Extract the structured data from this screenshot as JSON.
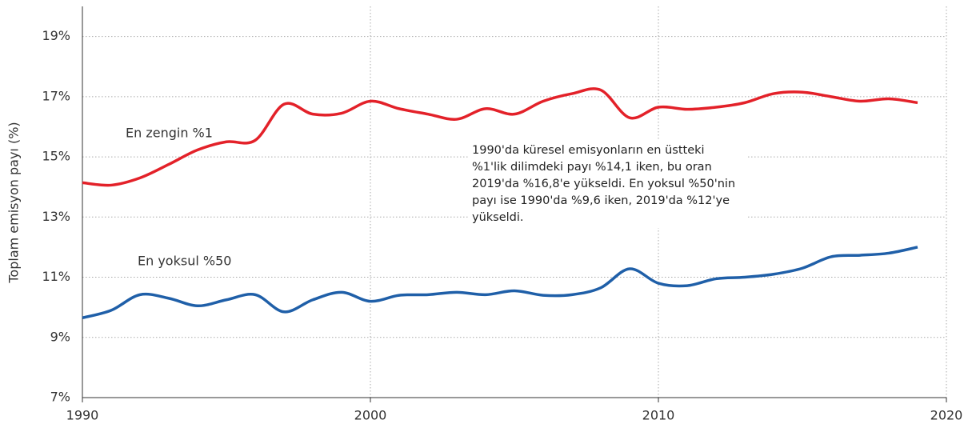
{
  "chart_data": {
    "type": "line",
    "y_label": "Toplam emisyon payı (%)",
    "x": [
      1990,
      1991,
      1992,
      1993,
      1994,
      1995,
      1996,
      1997,
      1998,
      1999,
      2000,
      2001,
      2002,
      2003,
      2004,
      2005,
      2006,
      2007,
      2008,
      2009,
      2010,
      2011,
      2012,
      2013,
      2014,
      2015,
      2016,
      2017,
      2018,
      2019
    ],
    "series": [
      {
        "name": "En zengin %1",
        "color": "#e32129",
        "values": [
          14.14,
          14.06,
          14.3,
          14.75,
          15.23,
          15.5,
          15.55,
          16.75,
          16.42,
          16.45,
          16.85,
          16.6,
          16.42,
          16.25,
          16.6,
          16.42,
          16.85,
          17.1,
          17.22,
          16.3,
          16.65,
          16.58,
          16.65,
          16.8,
          17.1,
          17.15,
          17.0,
          16.85,
          16.93,
          16.8
        ]
      },
      {
        "name": "En yoksul %50",
        "color": "#1f5fa8",
        "values": [
          9.65,
          9.9,
          10.42,
          10.3,
          10.05,
          10.25,
          10.42,
          9.85,
          10.25,
          10.5,
          10.2,
          10.4,
          10.42,
          10.5,
          10.42,
          10.55,
          10.4,
          10.42,
          10.65,
          11.28,
          10.8,
          10.72,
          10.95,
          11.0,
          11.1,
          11.3,
          11.68,
          11.73,
          11.8,
          12.0
        ]
      }
    ],
    "xlim": [
      1990,
      2020
    ],
    "xticks": [
      1990,
      2000,
      2010,
      2020
    ],
    "ylim": [
      7,
      20
    ],
    "yticks": [
      {
        "value": 7,
        "label": "7%"
      },
      {
        "value": 9,
        "label": "9%"
      },
      {
        "value": 11,
        "label": "11%"
      },
      {
        "value": 13,
        "label": "13%"
      },
      {
        "value": 15,
        "label": "15%"
      },
      {
        "value": 17,
        "label": "17%"
      },
      {
        "value": 19,
        "label": "19%"
      }
    ],
    "grid": true,
    "annotation": [
      "1990'da küresel emisyonların en üstteki",
      "%1'lik dilimdeki payı %14,1 iken, bu oran",
      "2019'da %16,8'e yükseldi. En yoksul %50'nin",
      "payı ise 1990'da %9,6 iken, 2019'da %12'ye",
      "yükseldi."
    ]
  }
}
